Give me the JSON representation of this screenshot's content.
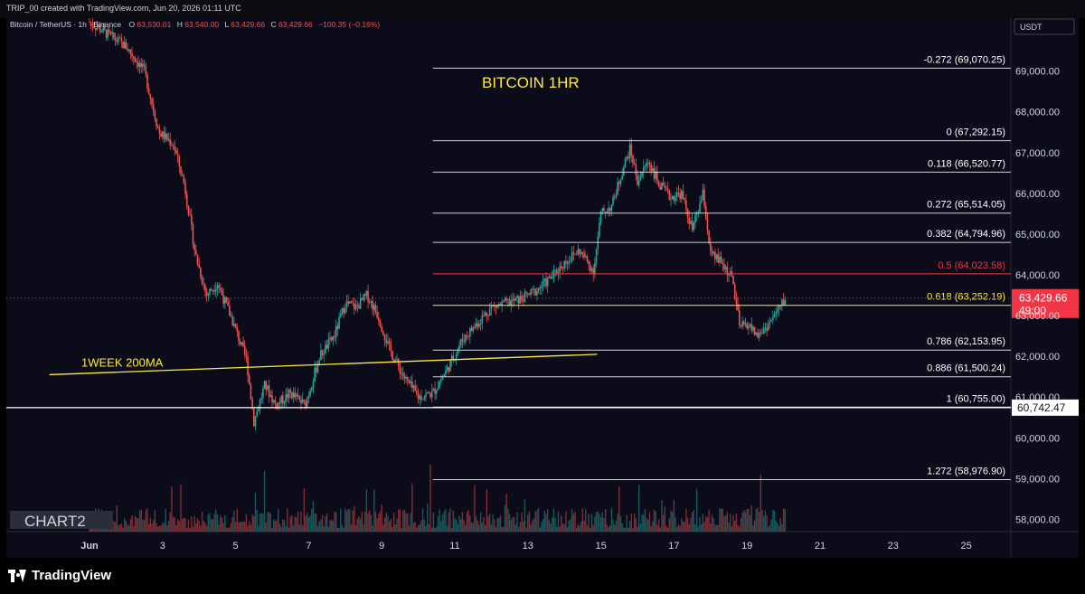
{
  "header": {
    "created_by": "TRIP_00 created with TradingView.com, Jun 20, 2026 01:11 UTC"
  },
  "legend": {
    "symbol": "Bitcoin / TetherUS · 1h · Binance",
    "o_label": "O",
    "o": "63,530.01",
    "h_label": "H",
    "h": "63,540.00",
    "l_label": "L",
    "l": "63,429.66",
    "c_label": "C",
    "c": "63,429.66",
    "change": "−100.35 (−0.16%)"
  },
  "brand": {
    "name": "TradingView"
  },
  "colors": {
    "background": "#0b0b1a",
    "up": "#26a69a",
    "down": "#ef5350",
    "fib_line": "#d1d4dc",
    "fib_highlight": "#f23645",
    "golden": "#ffeb3b",
    "ma": "#ffeb3b",
    "price_badge": "#f23645"
  },
  "chart_data": {
    "type": "candlestick",
    "title": "BITCOIN 1HR",
    "watermark": "CHART2",
    "currency": "USDT",
    "x_ticks": [
      "Jun",
      "3",
      "5",
      "7",
      "9",
      "11",
      "13",
      "15",
      "17",
      "19",
      "21",
      "23",
      "25"
    ],
    "ylim": [
      57700,
      70300
    ],
    "y_ticks": [
      "58,000.00",
      "59,000.00",
      "60,000.00",
      "61,000.00",
      "62,000.00",
      "63,000.00",
      "64,000.00",
      "65,000.00",
      "66,000.00",
      "67,000.00",
      "68,000.00",
      "69,000.00"
    ],
    "y_values": [
      58000,
      59000,
      60000,
      61000,
      62000,
      63000,
      64000,
      65000,
      66000,
      67000,
      68000,
      69000
    ],
    "current_price": {
      "value": 63429.66,
      "label": "63,429.66",
      "countdown": "49:00"
    },
    "horizontal_line": {
      "value": 60742.47,
      "label": "60,742.47"
    },
    "ma_line": {
      "label": "1WEEK 200MA",
      "start": {
        "day": -0.1,
        "price": 61550
      },
      "end": {
        "day": 14.9,
        "price": 62050
      }
    },
    "fibonacci": [
      {
        "level": "-0.272",
        "value": 69070.25,
        "label": "-0.272 (69,070.25)"
      },
      {
        "level": "0",
        "value": 67292.15,
        "label": "0 (67,292.15)"
      },
      {
        "level": "0.118",
        "value": 66520.77,
        "label": "0.118 (66,520.77)"
      },
      {
        "level": "0.272",
        "value": 65514.05,
        "label": "0.272 (65,514.05)"
      },
      {
        "level": "0.382",
        "value": 64794.96,
        "label": "0.382 (64,794.96)"
      },
      {
        "level": "0.5",
        "value": 64023.58,
        "label": "0.5 (64,023.58)"
      },
      {
        "level": "0.618",
        "value": 63252.19,
        "label": "0.618 (63,252.19)"
      },
      {
        "level": "0.786",
        "value": 62153.95,
        "label": "0.786 (62,153.95)"
      },
      {
        "level": "0.886",
        "value": 61500.24,
        "label": "0.886 (61,500.24)"
      },
      {
        "level": "1",
        "value": 60755.0,
        "label": "1 (60,755.00)"
      },
      {
        "level": "1.272",
        "value": 58976.9,
        "label": "1.272 (58,976.90)"
      }
    ],
    "fib_start_day": 10.4,
    "price_path": [
      [
        1.0,
        70200
      ],
      [
        2.0,
        69600
      ],
      [
        2.5,
        69000
      ],
      [
        2.9,
        67500
      ],
      [
        3.3,
        67200
      ],
      [
        3.6,
        66200
      ],
      [
        3.9,
        64500
      ],
      [
        4.2,
        63500
      ],
      [
        4.5,
        63800
      ],
      [
        4.9,
        62900
      ],
      [
        5.3,
        61900
      ],
      [
        5.5,
        60400
      ],
      [
        5.8,
        61300
      ],
      [
        6.1,
        60800
      ],
      [
        6.5,
        61100
      ],
      [
        6.9,
        60800
      ],
      [
        7.3,
        62000
      ],
      [
        7.7,
        62500
      ],
      [
        8.0,
        63300
      ],
      [
        8.3,
        63200
      ],
      [
        8.6,
        63500
      ],
      [
        8.9,
        63000
      ],
      [
        9.2,
        62200
      ],
      [
        9.6,
        61500
      ],
      [
        10.0,
        61000
      ],
      [
        10.4,
        61100
      ],
      [
        10.8,
        61700
      ],
      [
        11.2,
        62400
      ],
      [
        11.6,
        62800
      ],
      [
        12.0,
        63200
      ],
      [
        12.4,
        63300
      ],
      [
        12.8,
        63400
      ],
      [
        13.2,
        63600
      ],
      [
        13.6,
        63900
      ],
      [
        14.0,
        64300
      ],
      [
        14.4,
        64600
      ],
      [
        14.8,
        64100
      ],
      [
        15.0,
        65500
      ],
      [
        15.3,
        65700
      ],
      [
        15.6,
        66600
      ],
      [
        15.8,
        67100
      ],
      [
        16.0,
        66300
      ],
      [
        16.3,
        66800
      ],
      [
        16.6,
        66200
      ],
      [
        16.9,
        65900
      ],
      [
        17.2,
        66000
      ],
      [
        17.5,
        65100
      ],
      [
        17.8,
        66000
      ],
      [
        18.0,
        64500
      ],
      [
        18.3,
        64300
      ],
      [
        18.6,
        63900
      ],
      [
        18.8,
        62700
      ],
      [
        19.0,
        62800
      ],
      [
        19.3,
        62500
      ],
      [
        19.6,
        62800
      ],
      [
        19.9,
        63200
      ],
      [
        20.05,
        63430
      ]
    ]
  }
}
